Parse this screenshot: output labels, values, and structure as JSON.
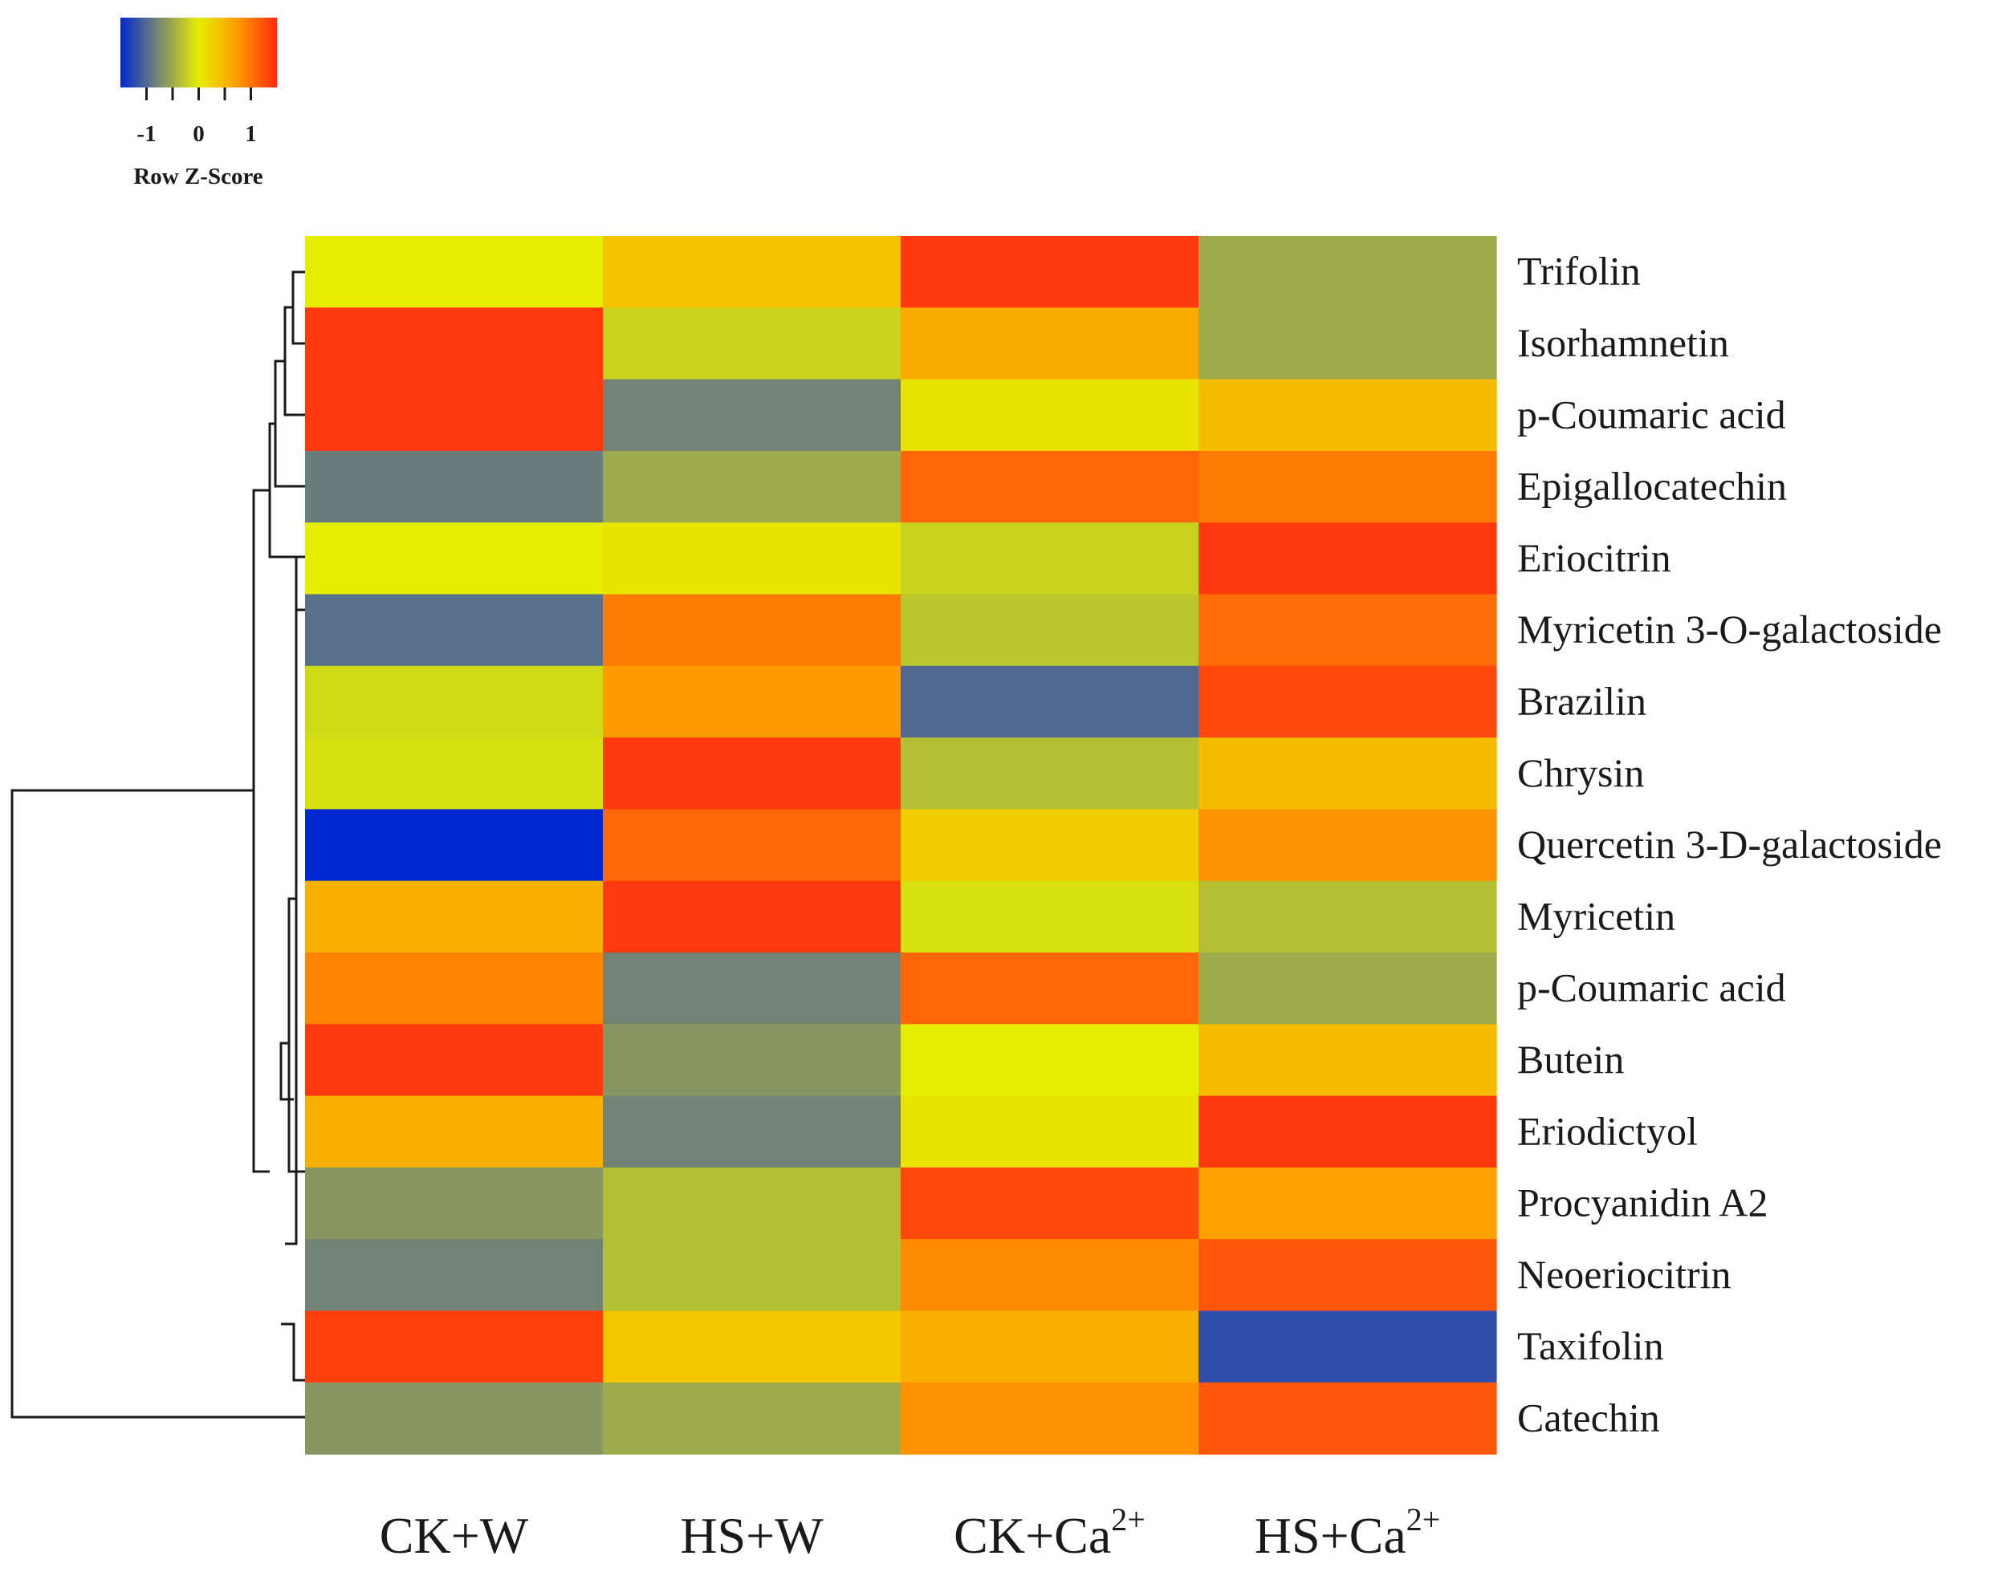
{
  "chart_data": {
    "type": "heatmap",
    "title": "",
    "legend": {
      "title": "Row Z-Score",
      "ticks": [
        "-1",
        "0",
        "1"
      ],
      "tick_values": [
        -1,
        0,
        1
      ],
      "range": [
        -1.5,
        1.5
      ],
      "colors": [
        "#0028d0",
        "#7a8a70",
        "#e6ee00",
        "#ff9a00",
        "#ff2a10"
      ],
      "placement": "top-left"
    },
    "columns": [
      {
        "base": "CK+W",
        "sup": ""
      },
      {
        "base": "HS+W",
        "sup": ""
      },
      {
        "base": "CK+Ca",
        "sup": "2+"
      },
      {
        "base": "HS+Ca",
        "sup": "2+"
      }
    ],
    "rows": [
      "Trifolin",
      "Isorhamnetin",
      "p-Coumaric acid",
      "Epigallocatechin",
      "Eriocitrin",
      "Myricetin 3-O-galactoside",
      "Brazilin",
      "Chrysin",
      "Quercetin 3-D-galactoside",
      "Myricetin",
      "p-Coumaric acid",
      "Butein",
      "Eriodictyol",
      "Procyanidin A2",
      "Neoeriocitrin",
      "Taxifolin",
      "Catechin"
    ],
    "values": [
      [
        0.0,
        0.4,
        1.4,
        -0.5
      ],
      [
        1.4,
        -0.2,
        0.6,
        -0.5
      ],
      [
        1.4,
        -0.8,
        0.1,
        0.45
      ],
      [
        -0.85,
        -0.5,
        1.1,
        0.95
      ],
      [
        0.0,
        0.1,
        -0.2,
        1.4
      ],
      [
        -0.95,
        0.95,
        -0.3,
        1.05
      ],
      [
        -0.15,
        0.75,
        -1.0,
        1.3
      ],
      [
        -0.1,
        1.4,
        -0.35,
        0.45
      ],
      [
        -1.5,
        1.1,
        0.3,
        0.8
      ],
      [
        0.55,
        1.4,
        -0.1,
        -0.35
      ],
      [
        0.9,
        -0.8,
        1.1,
        -0.5
      ],
      [
        1.4,
        -0.65,
        0.0,
        0.45
      ],
      [
        0.55,
        -0.8,
        0.1,
        1.4
      ],
      [
        -0.65,
        -0.35,
        1.3,
        0.7
      ],
      [
        -0.8,
        -0.35,
        0.85,
        1.2
      ],
      [
        1.35,
        0.35,
        0.55,
        -1.2
      ],
      [
        -0.65,
        -0.5,
        0.8,
        1.2
      ]
    ]
  }
}
